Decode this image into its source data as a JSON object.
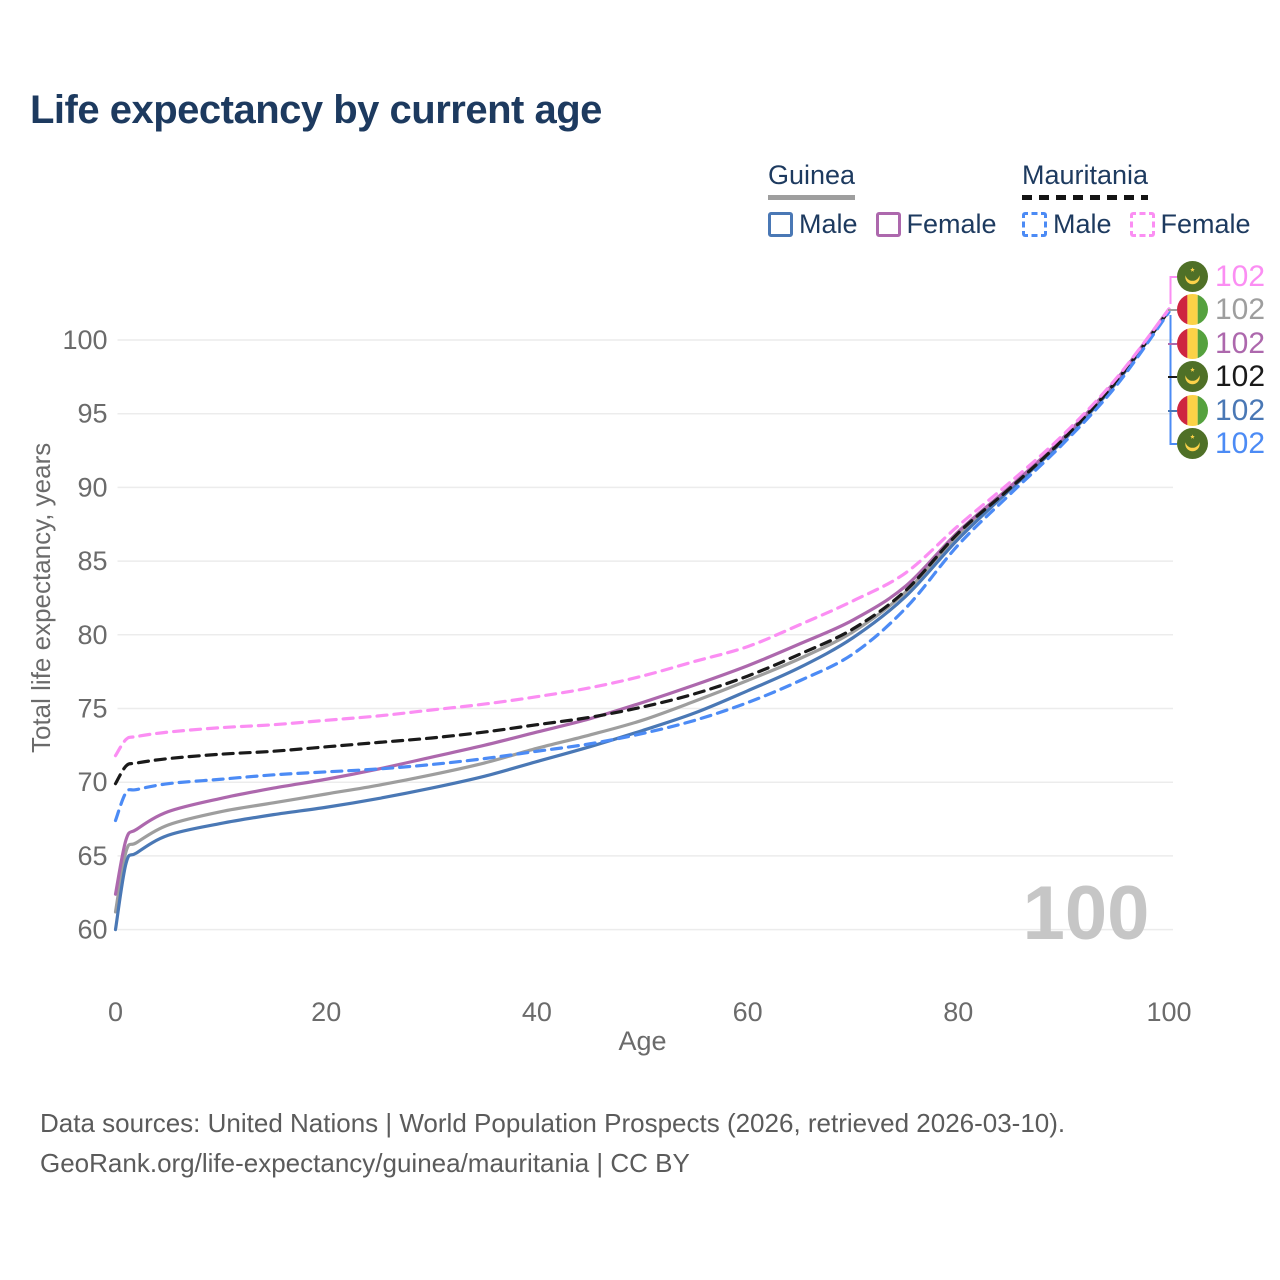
{
  "title": "Life expectancy by current age",
  "legend": {
    "groups": [
      {
        "name": "Guinea",
        "style": "solid",
        "items": [
          {
            "label": "Male",
            "series": "guinea_male"
          },
          {
            "label": "Female",
            "series": "guinea_female"
          }
        ]
      },
      {
        "name": "Mauritania",
        "style": "dashed",
        "items": [
          {
            "label": "Male",
            "series": "mauritania_male"
          },
          {
            "label": "Female",
            "series": "mauritania_female"
          }
        ]
      }
    ]
  },
  "watermark": "100",
  "end_labels": [
    {
      "value": "102",
      "flag": "mauritania",
      "series": "mauritania_female"
    },
    {
      "value": "102",
      "flag": "guinea",
      "series": "guinea_total"
    },
    {
      "value": "102",
      "flag": "guinea",
      "series": "guinea_female"
    },
    {
      "value": "102",
      "flag": "mauritania",
      "series": "mauritania_total"
    },
    {
      "value": "102",
      "flag": "guinea",
      "series": "guinea_male"
    },
    {
      "value": "102",
      "flag": "mauritania",
      "series": "mauritania_male"
    }
  ],
  "footer": {
    "line1": "Data sources: United Nations | World Population Prospects (2026, retrieved 2026-03-10).",
    "line2": "GeoRank.org/life-expectancy/guinea/mauritania | CC BY"
  },
  "colors": {
    "guinea_male": "#4a78b5",
    "guinea_female": "#ad68ad",
    "guinea_total": "#9e9e9e",
    "mauritania_male": "#4c8bf5",
    "mauritania_female": "#fb8ef3",
    "mauritania_total": "#1a1a1a",
    "grid": "#ececec",
    "tick": "#6b6b6b",
    "title": "#1d3a5f",
    "watermark": "#c6c6c6",
    "footer": "#5b5b5b"
  },
  "chart_data": {
    "type": "line",
    "title": "Life expectancy by current age",
    "xlabel": "Age",
    "ylabel": "Total life expectancy, years",
    "xlim": [
      0,
      100
    ],
    "ylim": [
      60,
      102.5
    ],
    "xticks": [
      0,
      20,
      40,
      60,
      80,
      100
    ],
    "yticks": [
      60,
      65,
      70,
      75,
      80,
      85,
      90,
      95,
      100
    ],
    "grid": "horizontal",
    "legend_position": "top-right",
    "hover_age": 100,
    "x": [
      0,
      1,
      2,
      5,
      10,
      15,
      20,
      25,
      30,
      35,
      40,
      45,
      50,
      55,
      60,
      65,
      70,
      75,
      80,
      85,
      90,
      95,
      100
    ],
    "series": [
      {
        "key": "guinea_total",
        "name": "Guinea Both sexes",
        "dash": "solid",
        "values": [
          61.2,
          65.3,
          65.9,
          67.1,
          68.0,
          68.6,
          69.2,
          69.8,
          70.5,
          71.3,
          72.3,
          73.2,
          74.2,
          75.5,
          76.9,
          78.4,
          80.2,
          82.9,
          86.8,
          90.0,
          93.3,
          97.2,
          102.0
        ]
      },
      {
        "key": "guinea_male",
        "name": "Guinea Male",
        "dash": "solid",
        "values": [
          60.0,
          64.5,
          65.2,
          66.4,
          67.2,
          67.8,
          68.3,
          68.9,
          69.6,
          70.4,
          71.4,
          72.4,
          73.5,
          74.7,
          76.2,
          77.8,
          79.8,
          82.6,
          86.5,
          89.9,
          93.2,
          97.1,
          102.0
        ]
      },
      {
        "key": "guinea_female",
        "name": "Guinea Female",
        "dash": "solid",
        "values": [
          62.4,
          66.1,
          66.8,
          68.0,
          68.9,
          69.6,
          70.2,
          70.9,
          71.7,
          72.5,
          73.4,
          74.3,
          75.4,
          76.6,
          77.9,
          79.4,
          81.0,
          83.3,
          87.0,
          90.1,
          93.4,
          97.3,
          102.1
        ]
      },
      {
        "key": "mauritania_total",
        "name": "Mauritania Both sexes",
        "dash": "dashed",
        "values": [
          69.9,
          71.1,
          71.3,
          71.6,
          71.9,
          72.1,
          72.4,
          72.7,
          73.0,
          73.4,
          73.9,
          74.4,
          75.1,
          76.0,
          77.2,
          78.7,
          80.4,
          83.0,
          86.9,
          90.0,
          93.3,
          97.2,
          102.0
        ]
      },
      {
        "key": "mauritania_male",
        "name": "Mauritania Male",
        "dash": "dashed",
        "values": [
          67.4,
          69.3,
          69.5,
          69.9,
          70.2,
          70.5,
          70.7,
          70.9,
          71.2,
          71.6,
          72.1,
          72.6,
          73.3,
          74.2,
          75.4,
          76.9,
          78.7,
          81.8,
          86.1,
          89.6,
          93.0,
          96.9,
          101.9
        ]
      },
      {
        "key": "mauritania_female",
        "name": "Mauritania Female",
        "dash": "dashed",
        "values": [
          71.8,
          72.9,
          73.1,
          73.4,
          73.7,
          73.9,
          74.2,
          74.5,
          74.9,
          75.3,
          75.8,
          76.4,
          77.2,
          78.2,
          79.2,
          80.7,
          82.3,
          84.2,
          87.4,
          90.4,
          93.6,
          97.4,
          102.1
        ]
      }
    ],
    "end_value_labels": [
      102,
      102,
      102,
      102,
      102,
      102
    ]
  }
}
